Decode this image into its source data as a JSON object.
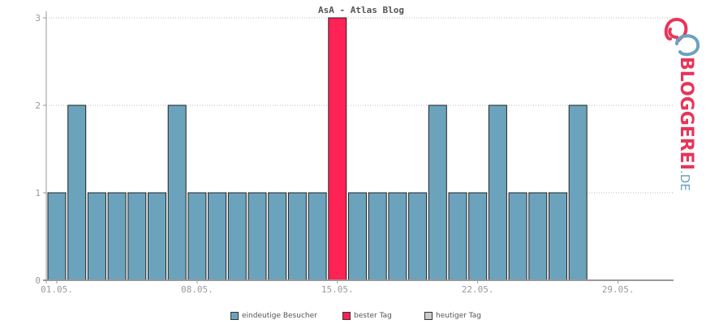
{
  "chart_data": {
    "type": "bar",
    "title": "AsA - Atlas Blog",
    "x_tick_labels": [
      "01.05.",
      "08.05.",
      "15.05.",
      "22.05.",
      "29.05."
    ],
    "x_tick_days": [
      1,
      8,
      15,
      22,
      29
    ],
    "days_in_month": 31,
    "days": [
      1,
      2,
      3,
      4,
      5,
      6,
      7,
      8,
      9,
      10,
      11,
      12,
      13,
      14,
      15,
      16,
      17,
      18,
      19,
      20,
      21,
      22,
      23,
      24,
      25,
      26,
      27,
      28,
      29,
      30,
      31
    ],
    "values": [
      1,
      2,
      1,
      1,
      1,
      1,
      2,
      1,
      1,
      1,
      1,
      1,
      1,
      1,
      3,
      1,
      1,
      1,
      1,
      2,
      1,
      1,
      2,
      1,
      1,
      1,
      2,
      null,
      null,
      null,
      null
    ],
    "best_day": 15,
    "ylim": [
      0,
      3
    ],
    "yticks": [
      0,
      1,
      2,
      3
    ],
    "grid": true,
    "legend_position": "bottom",
    "colors": {
      "visitors": "#6ba3bd",
      "best_day": "#ff2255",
      "today": "#cccccc",
      "bar_stroke": "#222222",
      "grid": "#bbbbbb",
      "axis": "#999999"
    }
  },
  "legend": [
    {
      "label": "eindeutige Besucher",
      "color": "#6ba3bd"
    },
    {
      "label": "bester Tag",
      "color": "#ff2255"
    },
    {
      "label": "heutiger Tag",
      "color": "#cccccc"
    }
  ],
  "logo": {
    "text_main": "BLOGGEREI",
    "text_tld": ".DE",
    "color_main": "#e8355a",
    "color_tld": "#6ba3bd",
    "icon": "bloggerei-logo-icon"
  }
}
